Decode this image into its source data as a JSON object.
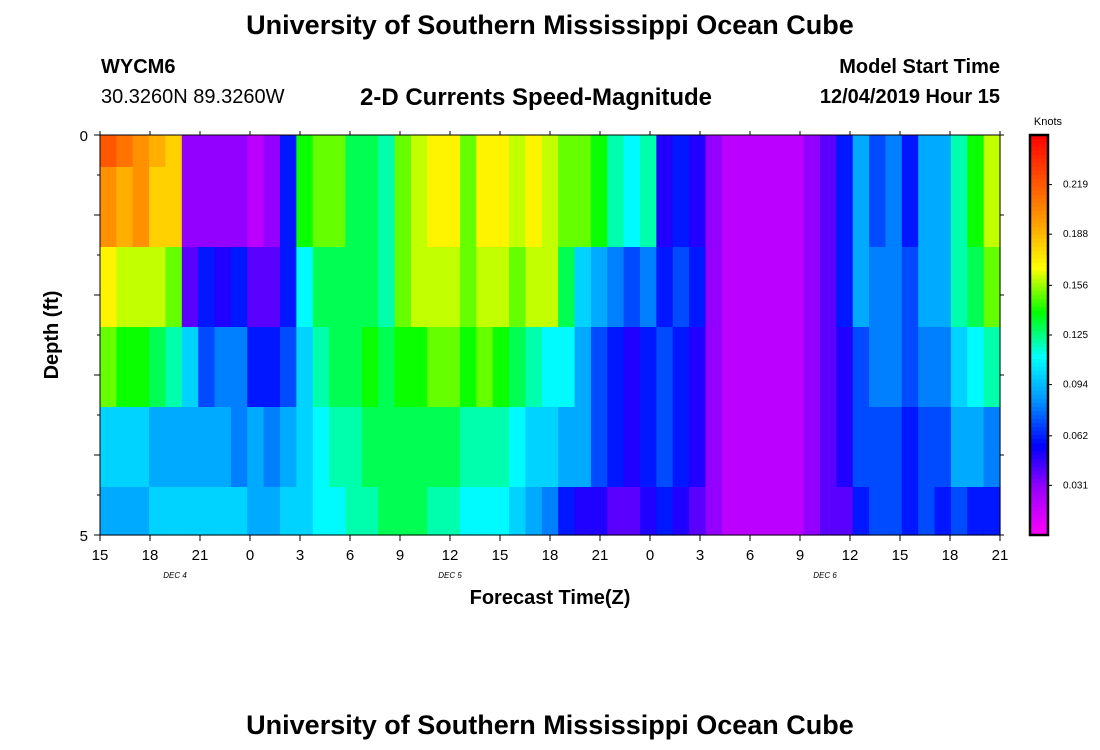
{
  "page": {
    "title_top": "University of Southern Mississippi Ocean Cube",
    "title_bottom": "University of Southern Mississippi Ocean Cube",
    "station_id": "WYCM6",
    "station_coords": "30.3260N 89.3260W",
    "plot_title": "2-D Currents Speed-Magnitude",
    "start_label": "Model Start Time",
    "start_value": "12/04/2019 Hour 15"
  },
  "chart_data": {
    "type": "heatmap",
    "title": "2-D Currents Speed-Magnitude",
    "xlabel": "Forecast Time(Z)",
    "ylabel": "Depth (ft)",
    "colorbar_label": "Knots",
    "x_range_hours": [
      0,
      54
    ],
    "y_range": [
      0,
      5
    ],
    "x_tick_labels": [
      "15",
      "18",
      "21",
      "0",
      "3",
      "6",
      "9",
      "12",
      "15",
      "18",
      "21",
      "0",
      "3",
      "6",
      "9",
      "12",
      "15",
      "18",
      "21"
    ],
    "y_tick_labels": [
      "0",
      "5"
    ],
    "day_labels": [
      {
        "text": "DEC 4",
        "hour": 4.5
      },
      {
        "text": "DEC 5",
        "hour": 21
      },
      {
        "text": "DEC 6",
        "hour": 43.5
      }
    ],
    "colorbar_ticks": [
      "0.219",
      "0.188",
      "0.156",
      "0.125",
      "0.094",
      "0.062",
      "0.031"
    ],
    "colorbar_tick_values": [
      0.219,
      0.188,
      0.156,
      0.125,
      0.094,
      0.062,
      0.031
    ],
    "value_range": [
      0.0,
      0.25
    ],
    "colorscale": [
      "#ff00ff",
      "#a000ff",
      "#0000ff",
      "#0090ff",
      "#00ffff",
      "#00ff00",
      "#ffff00",
      "#ffa000",
      "#ff5000",
      "#ff0000"
    ],
    "depth_layers": [
      0,
      0.4,
      1.4,
      2.4,
      3.4,
      4.4,
      5.0
    ],
    "hours": [
      0,
      1,
      2,
      3,
      4,
      5,
      6,
      7,
      8,
      9,
      10,
      11,
      12,
      13,
      14,
      15,
      16,
      17,
      18,
      19,
      20,
      21,
      22,
      23,
      24,
      25,
      26,
      27,
      28,
      29,
      30,
      31,
      32,
      33,
      34,
      35,
      36,
      37,
      38,
      39,
      40,
      41,
      42,
      43,
      44,
      45,
      46,
      47,
      48,
      49,
      50,
      51,
      52,
      53,
      54
    ],
    "values": [
      [
        0.22,
        0.21,
        0.2,
        0.19,
        0.18,
        0.03,
        0.03,
        0.03,
        0.03,
        0.02,
        0.03,
        0.06,
        0.14,
        0.15,
        0.15,
        0.13,
        0.13,
        0.12,
        0.15,
        0.16,
        0.17,
        0.17,
        0.15,
        0.17,
        0.17,
        0.16,
        0.17,
        0.16,
        0.15,
        0.15,
        0.14,
        0.12,
        0.11,
        0.12,
        0.05,
        0.06,
        0.05,
        0.03,
        0.02,
        0.02,
        0.02,
        0.02,
        0.02,
        0.03,
        0.04,
        0.06,
        0.09,
        0.07,
        0.08,
        0.06,
        0.09,
        0.09,
        0.12,
        0.14,
        0.16
      ],
      [
        0.2,
        0.19,
        0.2,
        0.18,
        0.18,
        0.03,
        0.03,
        0.03,
        0.03,
        0.02,
        0.03,
        0.06,
        0.14,
        0.15,
        0.15,
        0.13,
        0.13,
        0.12,
        0.15,
        0.16,
        0.17,
        0.17,
        0.15,
        0.17,
        0.17,
        0.16,
        0.17,
        0.16,
        0.15,
        0.15,
        0.14,
        0.12,
        0.11,
        0.12,
        0.05,
        0.06,
        0.05,
        0.03,
        0.02,
        0.02,
        0.02,
        0.02,
        0.02,
        0.03,
        0.04,
        0.06,
        0.09,
        0.07,
        0.08,
        0.06,
        0.09,
        0.09,
        0.12,
        0.14,
        0.16
      ],
      [
        0.17,
        0.16,
        0.16,
        0.16,
        0.15,
        0.04,
        0.06,
        0.05,
        0.06,
        0.04,
        0.04,
        0.06,
        0.11,
        0.13,
        0.13,
        0.13,
        0.13,
        0.12,
        0.15,
        0.16,
        0.16,
        0.16,
        0.15,
        0.16,
        0.16,
        0.15,
        0.16,
        0.16,
        0.13,
        0.1,
        0.09,
        0.08,
        0.07,
        0.08,
        0.06,
        0.07,
        0.06,
        0.03,
        0.02,
        0.02,
        0.02,
        0.02,
        0.02,
        0.03,
        0.04,
        0.06,
        0.09,
        0.08,
        0.08,
        0.07,
        0.09,
        0.09,
        0.12,
        0.13,
        0.15
      ],
      [
        0.15,
        0.14,
        0.14,
        0.13,
        0.12,
        0.1,
        0.07,
        0.08,
        0.08,
        0.06,
        0.06,
        0.07,
        0.1,
        0.12,
        0.13,
        0.13,
        0.14,
        0.13,
        0.14,
        0.14,
        0.15,
        0.15,
        0.14,
        0.15,
        0.14,
        0.13,
        0.12,
        0.11,
        0.11,
        0.09,
        0.07,
        0.06,
        0.05,
        0.06,
        0.07,
        0.06,
        0.05,
        0.03,
        0.02,
        0.02,
        0.02,
        0.02,
        0.02,
        0.03,
        0.04,
        0.05,
        0.07,
        0.08,
        0.08,
        0.07,
        0.08,
        0.08,
        0.1,
        0.11,
        0.12
      ],
      [
        0.1,
        0.1,
        0.1,
        0.09,
        0.09,
        0.09,
        0.09,
        0.09,
        0.08,
        0.09,
        0.08,
        0.09,
        0.1,
        0.11,
        0.12,
        0.12,
        0.13,
        0.13,
        0.13,
        0.13,
        0.13,
        0.13,
        0.12,
        0.12,
        0.12,
        0.11,
        0.1,
        0.1,
        0.09,
        0.09,
        0.07,
        0.06,
        0.05,
        0.06,
        0.07,
        0.06,
        0.05,
        0.03,
        0.02,
        0.02,
        0.02,
        0.02,
        0.02,
        0.03,
        0.04,
        0.05,
        0.07,
        0.07,
        0.07,
        0.06,
        0.07,
        0.07,
        0.09,
        0.09,
        0.08
      ],
      [
        0.09,
        0.09,
        0.09,
        0.1,
        0.1,
        0.1,
        0.1,
        0.1,
        0.1,
        0.09,
        0.09,
        0.1,
        0.1,
        0.11,
        0.11,
        0.12,
        0.12,
        0.13,
        0.13,
        0.13,
        0.12,
        0.12,
        0.11,
        0.11,
        0.11,
        0.1,
        0.09,
        0.08,
        0.06,
        0.05,
        0.05,
        0.04,
        0.04,
        0.05,
        0.06,
        0.05,
        0.04,
        0.03,
        0.02,
        0.02,
        0.02,
        0.02,
        0.02,
        0.03,
        0.04,
        0.04,
        0.06,
        0.07,
        0.07,
        0.06,
        0.07,
        0.06,
        0.07,
        0.06,
        0.06
      ]
    ]
  }
}
